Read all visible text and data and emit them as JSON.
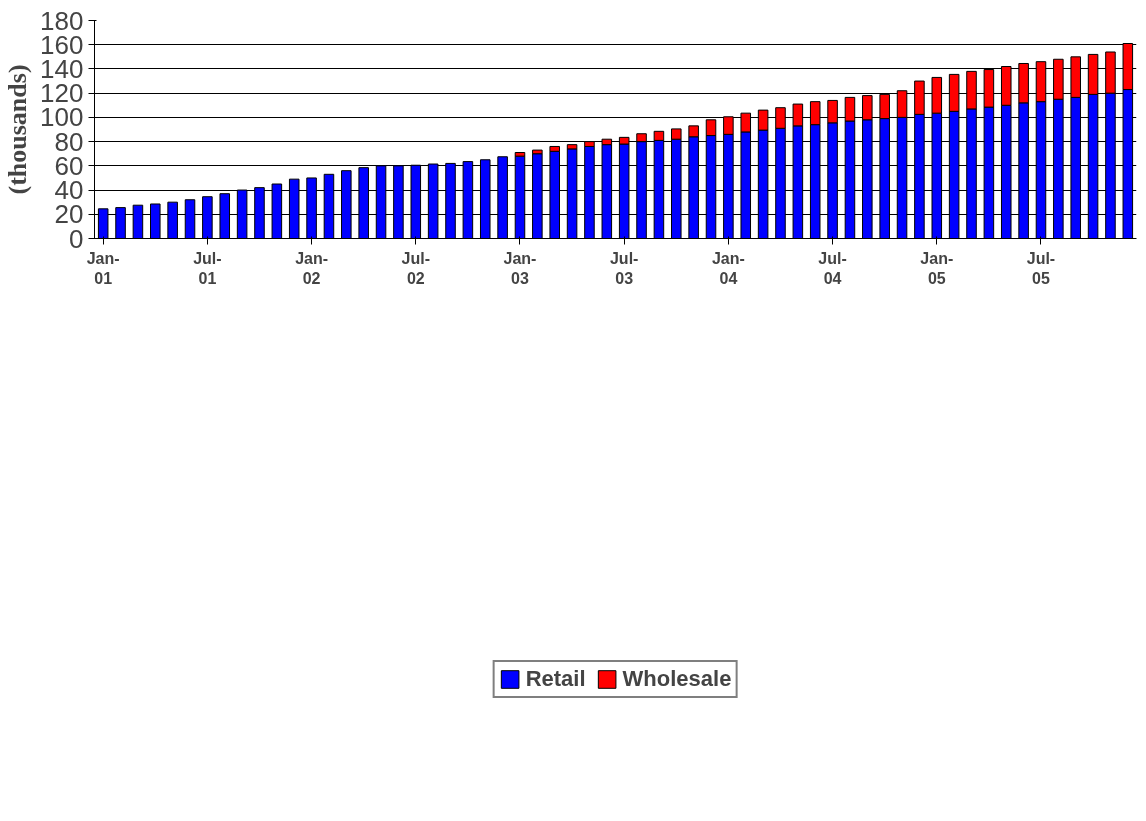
{
  "chart_data": {
    "type": "bar",
    "stacked": true,
    "ylabel": "(thousands)",
    "categories": [
      "Jan-01",
      null,
      null,
      null,
      null,
      null,
      "Jul-01",
      null,
      null,
      null,
      null,
      null,
      "Jan-02",
      null,
      null,
      null,
      null,
      null,
      "Jul-02",
      null,
      null,
      null,
      null,
      null,
      "Jan-03",
      null,
      null,
      null,
      null,
      null,
      "Jul-03",
      null,
      null,
      null,
      null,
      null,
      "Jan-04",
      null,
      null,
      null,
      null,
      null,
      "Jul-04",
      null,
      null,
      null,
      null,
      null,
      "Jan-05",
      null,
      null,
      null,
      null,
      null,
      "Jul-05",
      null,
      null,
      null,
      null,
      null
    ],
    "series": [
      {
        "name": "Retail",
        "color": "#0000ff",
        "values": [
          24.5,
          25.5,
          27.5,
          28.5,
          30,
          32,
          34.5,
          37,
          40,
          42,
          45,
          49,
          50,
          53,
          56,
          58.5,
          60,
          60,
          60.5,
          61.5,
          62,
          63.5,
          65,
          67.5,
          68,
          70,
          72,
          74,
          76,
          77.5,
          78,
          80,
          81,
          82,
          84,
          85,
          86,
          88,
          89.5,
          91,
          93,
          94,
          95.5,
          97,
          98,
          99,
          100,
          102.5,
          103.5,
          105,
          107,
          108.5,
          110,
          112,
          113,
          115,
          116.5,
          119,
          120,
          123
        ]
      },
      {
        "name": "Wholesale",
        "color": "#ff0000",
        "values": [
          null,
          null,
          null,
          null,
          null,
          null,
          null,
          null,
          null,
          null,
          null,
          null,
          null,
          null,
          null,
          null,
          null,
          null,
          null,
          null,
          null,
          null,
          null,
          null,
          3,
          3,
          4,
          3.5,
          4,
          4.5,
          5.5,
          6.5,
          7.5,
          8.5,
          9,
          13,
          14.5,
          15.5,
          16.5,
          17,
          18,
          19,
          18.5,
          19.5,
          20,
          20,
          22,
          27.5,
          29.5,
          30.5,
          31,
          31,
          32,
          32.5,
          33,
          33,
          33.5,
          33,
          34,
          38
        ]
      }
    ],
    "ylim": [
      0,
      180
    ],
    "yticks": [
      0,
      20,
      40,
      60,
      80,
      100,
      120,
      140,
      160,
      180
    ],
    "grid": "y",
    "legend": "bottom"
  }
}
